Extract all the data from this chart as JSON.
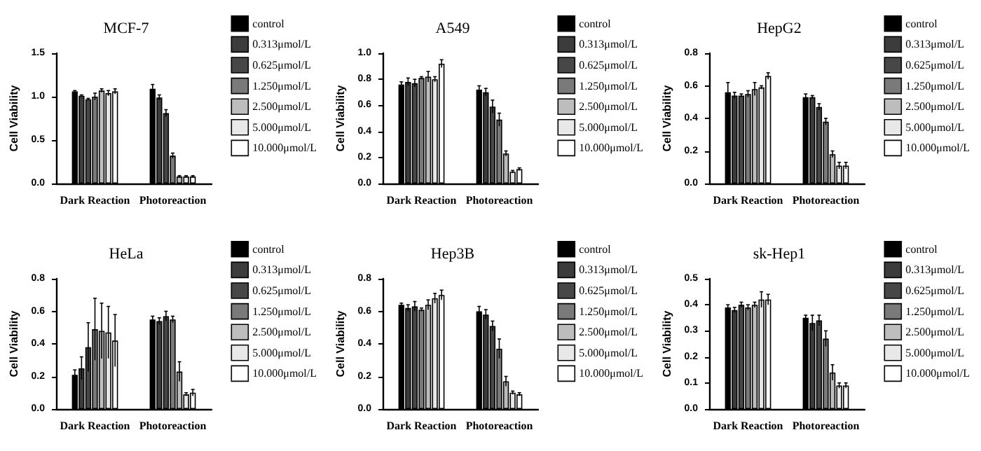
{
  "chart_data": [
    {
      "type": "bar",
      "title": "MCF-7",
      "ylabel": "Cell Viability",
      "categories": [
        "Dark Reaction",
        "Photoreaction"
      ],
      "ylim": [
        0,
        1.5
      ],
      "yticks": [
        {
          "value": 0,
          "label": "0.0"
        },
        {
          "value": 0.5,
          "label": "0.5"
        },
        {
          "value": 1,
          "label": "1.0"
        },
        {
          "value": 1.5,
          "label": "1.5"
        }
      ],
      "legend": "right",
      "series": [
        {
          "name": "control",
          "color": "#000000",
          "values": [
            1.06,
            1.09
          ],
          "errors": [
            0.01,
            0.05
          ]
        },
        {
          "name": "0.313μmol/L",
          "color": "#3c3c3c",
          "values": [
            1.01,
            0.99
          ],
          "errors": [
            0.01,
            0.03
          ]
        },
        {
          "name": "0.625μmol/L",
          "color": "#474747",
          "values": [
            0.97,
            0.81
          ],
          "errors": [
            0.01,
            0.04
          ]
        },
        {
          "name": "1.250μmol/L",
          "color": "#7a7a7a",
          "values": [
            1.0,
            0.32
          ],
          "errors": [
            0.04,
            0.03
          ]
        },
        {
          "name": "2.500μmol/L",
          "color": "#bdbdbd",
          "values": [
            1.07,
            0.08
          ],
          "errors": [
            0.02,
            0.01
          ]
        },
        {
          "name": "5.000μmol/L",
          "color": "#e8e8e8",
          "values": [
            1.04,
            0.08
          ],
          "errors": [
            0.03,
            0.01
          ]
        },
        {
          "name": "10.000μmol/L",
          "color": "#ffffff",
          "values": [
            1.06,
            0.08
          ],
          "errors": [
            0.03,
            0.01
          ]
        }
      ]
    },
    {
      "type": "bar",
      "title": "A549",
      "ylabel": "Cell Viability",
      "categories": [
        "Dark Reaction",
        "Photoreaction"
      ],
      "ylim": [
        0,
        1.0
      ],
      "yticks": [
        {
          "value": 0,
          "label": "0.0"
        },
        {
          "value": 0.2,
          "label": "0.2"
        },
        {
          "value": 0.4,
          "label": "0.4"
        },
        {
          "value": 0.6,
          "label": "0.6"
        },
        {
          "value": 0.8,
          "label": "0.8"
        },
        {
          "value": 1,
          "label": "1.0"
        }
      ],
      "legend": "right",
      "series": [
        {
          "name": "control",
          "color": "#000000",
          "values": [
            0.76,
            0.72
          ],
          "errors": [
            0.02,
            0.03
          ]
        },
        {
          "name": "0.313μmol/L",
          "color": "#3c3c3c",
          "values": [
            0.78,
            0.7
          ],
          "errors": [
            0.03,
            0.03
          ]
        },
        {
          "name": "0.625μmol/L",
          "color": "#474747",
          "values": [
            0.77,
            0.59
          ],
          "errors": [
            0.03,
            0.05
          ]
        },
        {
          "name": "1.250μmol/L",
          "color": "#7a7a7a",
          "values": [
            0.81,
            0.49
          ],
          "errors": [
            0.01,
            0.05
          ]
        },
        {
          "name": "2.500μmol/L",
          "color": "#bdbdbd",
          "values": [
            0.82,
            0.23
          ],
          "errors": [
            0.04,
            0.02
          ]
        },
        {
          "name": "5.000μmol/L",
          "color": "#e8e8e8",
          "values": [
            0.8,
            0.09
          ],
          "errors": [
            0.02,
            0.01
          ]
        },
        {
          "name": "10.000μmol/L",
          "color": "#ffffff",
          "values": [
            0.92,
            0.11
          ],
          "errors": [
            0.03,
            0.01
          ]
        }
      ]
    },
    {
      "type": "bar",
      "title": "HepG2",
      "ylabel": "Cell Viability",
      "categories": [
        "Dark Reaction",
        "Photoreaction"
      ],
      "ylim": [
        0,
        0.8
      ],
      "yticks": [
        {
          "value": 0,
          "label": "0.0"
        },
        {
          "value": 0.2,
          "label": "0.2"
        },
        {
          "value": 0.4,
          "label": "0.4"
        },
        {
          "value": 0.6,
          "label": "0.6"
        },
        {
          "value": 0.8,
          "label": "0.8"
        }
      ],
      "legend": "right",
      "series": [
        {
          "name": "control",
          "color": "#000000",
          "values": [
            0.56,
            0.53
          ],
          "errors": [
            0.06,
            0.02
          ]
        },
        {
          "name": "0.313μmol/L",
          "color": "#3c3c3c",
          "values": [
            0.54,
            0.53
          ],
          "errors": [
            0.02,
            0.01
          ]
        },
        {
          "name": "0.625μmol/L",
          "color": "#474747",
          "values": [
            0.54,
            0.47
          ],
          "errors": [
            0.01,
            0.02
          ]
        },
        {
          "name": "1.250μmol/L",
          "color": "#7a7a7a",
          "values": [
            0.55,
            0.38
          ],
          "errors": [
            0.02,
            0.02
          ]
        },
        {
          "name": "2.500μmol/L",
          "color": "#bdbdbd",
          "values": [
            0.58,
            0.18
          ],
          "errors": [
            0.04,
            0.02
          ]
        },
        {
          "name": "5.000μmol/L",
          "color": "#e8e8e8",
          "values": [
            0.59,
            0.11
          ],
          "errors": [
            0.01,
            0.02
          ]
        },
        {
          "name": "10.000μmol/L",
          "color": "#ffffff",
          "values": [
            0.66,
            0.11
          ],
          "errors": [
            0.02,
            0.02
          ]
        }
      ]
    },
    {
      "type": "bar",
      "title": "HeLa",
      "ylabel": "Cell Viability",
      "categories": [
        "Dark Reaction",
        "Photoreaction"
      ],
      "ylim": [
        0,
        0.8
      ],
      "yticks": [
        {
          "value": 0,
          "label": "0.0"
        },
        {
          "value": 0.2,
          "label": "0.2"
        },
        {
          "value": 0.4,
          "label": "0.4"
        },
        {
          "value": 0.6,
          "label": "0.6"
        },
        {
          "value": 0.8,
          "label": "0.8"
        }
      ],
      "legend": "right",
      "series": [
        {
          "name": "control",
          "color": "#000000",
          "values": [
            0.21,
            0.55
          ],
          "errors": [
            0.03,
            0.02
          ]
        },
        {
          "name": "0.313μmol/L",
          "color": "#3c3c3c",
          "values": [
            0.25,
            0.54
          ],
          "errors": [
            0.07,
            0.02
          ]
        },
        {
          "name": "0.625μmol/L",
          "color": "#474747",
          "values": [
            0.38,
            0.57
          ],
          "errors": [
            0.15,
            0.03
          ]
        },
        {
          "name": "1.250μmol/L",
          "color": "#7a7a7a",
          "values": [
            0.49,
            0.55
          ],
          "errors": [
            0.19,
            0.02
          ]
        },
        {
          "name": "2.500μmol/L",
          "color": "#bdbdbd",
          "values": [
            0.48,
            0.23
          ],
          "errors": [
            0.17,
            0.06
          ]
        },
        {
          "name": "5.000μmol/L",
          "color": "#e8e8e8",
          "values": [
            0.47,
            0.09
          ],
          "errors": [
            0.16,
            0.01
          ]
        },
        {
          "name": "10.000μmol/L",
          "color": "#ffffff",
          "values": [
            0.42,
            0.1
          ],
          "errors": [
            0.16,
            0.02
          ]
        }
      ]
    },
    {
      "type": "bar",
      "title": "Hep3B",
      "ylabel": "Cell Viability",
      "categories": [
        "Dark Reaction",
        "Photoreaction"
      ],
      "ylim": [
        0,
        0.8
      ],
      "yticks": [
        {
          "value": 0,
          "label": "0.0"
        },
        {
          "value": 0.2,
          "label": "0.2"
        },
        {
          "value": 0.4,
          "label": "0.4"
        },
        {
          "value": 0.6,
          "label": "0.6"
        },
        {
          "value": 0.8,
          "label": "0.8"
        }
      ],
      "legend": "right",
      "series": [
        {
          "name": "control",
          "color": "#000000",
          "values": [
            0.64,
            0.6
          ],
          "errors": [
            0.01,
            0.03
          ]
        },
        {
          "name": "0.313μmol/L",
          "color": "#3c3c3c",
          "values": [
            0.62,
            0.58
          ],
          "errors": [
            0.02,
            0.03
          ]
        },
        {
          "name": "0.625μmol/L",
          "color": "#474747",
          "values": [
            0.63,
            0.51
          ],
          "errors": [
            0.03,
            0.03
          ]
        },
        {
          "name": "1.250μmol/L",
          "color": "#7a7a7a",
          "values": [
            0.61,
            0.37
          ],
          "errors": [
            0.01,
            0.06
          ]
        },
        {
          "name": "2.500μmol/L",
          "color": "#bdbdbd",
          "values": [
            0.64,
            0.17
          ],
          "errors": [
            0.03,
            0.03
          ]
        },
        {
          "name": "5.000μmol/L",
          "color": "#e8e8e8",
          "values": [
            0.68,
            0.1
          ],
          "errors": [
            0.03,
            0.01
          ]
        },
        {
          "name": "10.000μmol/L",
          "color": "#ffffff",
          "values": [
            0.7,
            0.09
          ],
          "errors": [
            0.03,
            0.01
          ]
        }
      ]
    },
    {
      "type": "bar",
      "title": "sk-Hep1",
      "ylabel": "Cell Viability",
      "categories": [
        "Dark Reaction",
        "Photoreaction"
      ],
      "ylim": [
        0,
        0.5
      ],
      "yticks": [
        {
          "value": 0,
          "label": "0.0"
        },
        {
          "value": 0.1,
          "label": "0.1"
        },
        {
          "value": 0.2,
          "label": "0.2"
        },
        {
          "value": 0.3,
          "label": "0.3"
        },
        {
          "value": 0.4,
          "label": "0.4"
        },
        {
          "value": 0.5,
          "label": "0.5"
        }
      ],
      "legend": "right",
      "series": [
        {
          "name": "control",
          "color": "#000000",
          "values": [
            0.39,
            0.35
          ],
          "errors": [
            0.01,
            0.01
          ]
        },
        {
          "name": "0.313μmol/L",
          "color": "#3c3c3c",
          "values": [
            0.38,
            0.33
          ],
          "errors": [
            0.01,
            0.03
          ]
        },
        {
          "name": "0.625μmol/L",
          "color": "#474747",
          "values": [
            0.4,
            0.34
          ],
          "errors": [
            0.01,
            0.02
          ]
        },
        {
          "name": "1.250μmol/L",
          "color": "#7a7a7a",
          "values": [
            0.39,
            0.27
          ],
          "errors": [
            0.01,
            0.03
          ]
        },
        {
          "name": "2.500μmol/L",
          "color": "#bdbdbd",
          "values": [
            0.4,
            0.14
          ],
          "errors": [
            0.01,
            0.03
          ]
        },
        {
          "name": "5.000μmol/L",
          "color": "#e8e8e8",
          "values": [
            0.42,
            0.09
          ],
          "errors": [
            0.03,
            0.01
          ]
        },
        {
          "name": "10.000μmol/L",
          "color": "#ffffff",
          "values": [
            0.42,
            0.09
          ],
          "errors": [
            0.02,
            0.01
          ]
        }
      ]
    }
  ]
}
